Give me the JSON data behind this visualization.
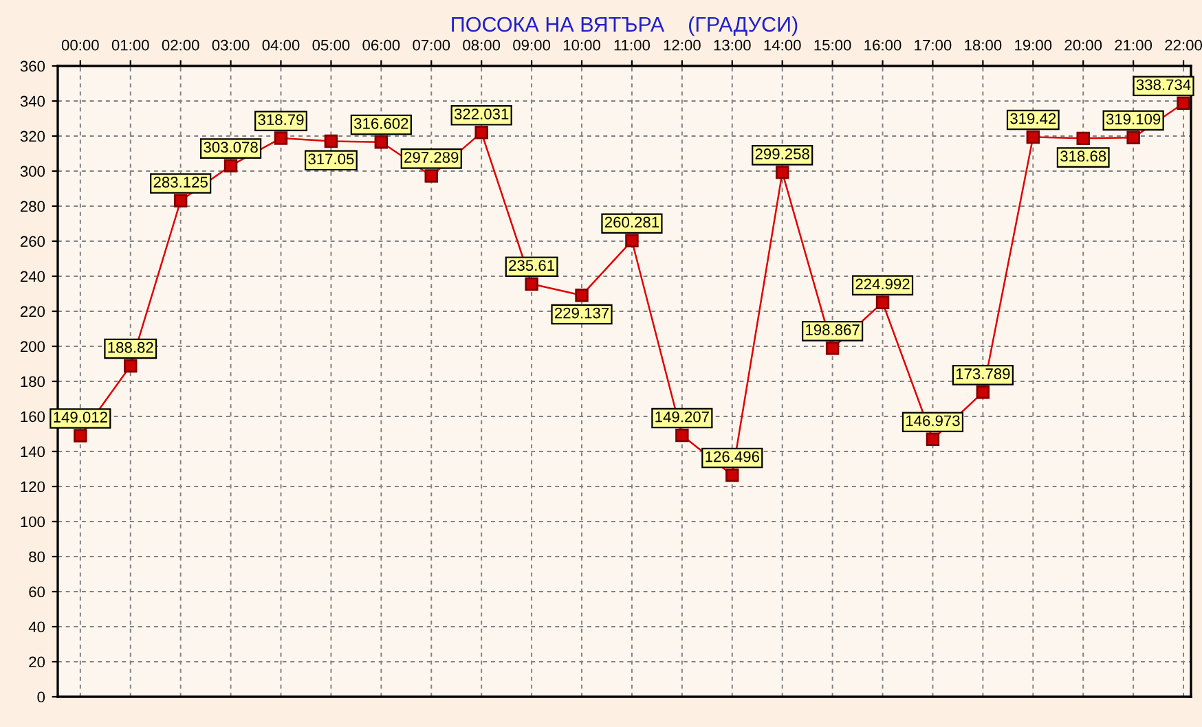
{
  "chart_data": {
    "type": "line",
    "title": "ПОСОКА НА ВЯТЪРА    (ГРАДУСИ)",
    "categories": [
      "00:00",
      "01:00",
      "02:00",
      "03:00",
      "04:00",
      "05:00",
      "06:00",
      "07:00",
      "08:00",
      "09:00",
      "10:00",
      "11:00",
      "12:00",
      "13:00",
      "14:00",
      "15:00",
      "16:00",
      "17:00",
      "18:00",
      "19:00",
      "20:00",
      "21:00",
      "22:00"
    ],
    "series": [
      {
        "color": "#e00000",
        "values": [
          149.012,
          188.82,
          283.125,
          303.078,
          318.79,
          317.05,
          316.602,
          297.289,
          322.031,
          235.61,
          229.137,
          260.281,
          149.207,
          126.496,
          299.258,
          198.867,
          224.992,
          146.973,
          173.789,
          319.42,
          318.68,
          319.109,
          338.734
        ]
      }
    ],
    "ylim": [
      0,
      360
    ],
    "yticks": [
      0,
      20,
      40,
      60,
      80,
      100,
      120,
      140,
      160,
      180,
      200,
      220,
      240,
      260,
      280,
      300,
      320,
      340,
      360
    ],
    "grid": true,
    "marker": "square",
    "line_style": "solid",
    "data_labels": true,
    "legend": false
  }
}
